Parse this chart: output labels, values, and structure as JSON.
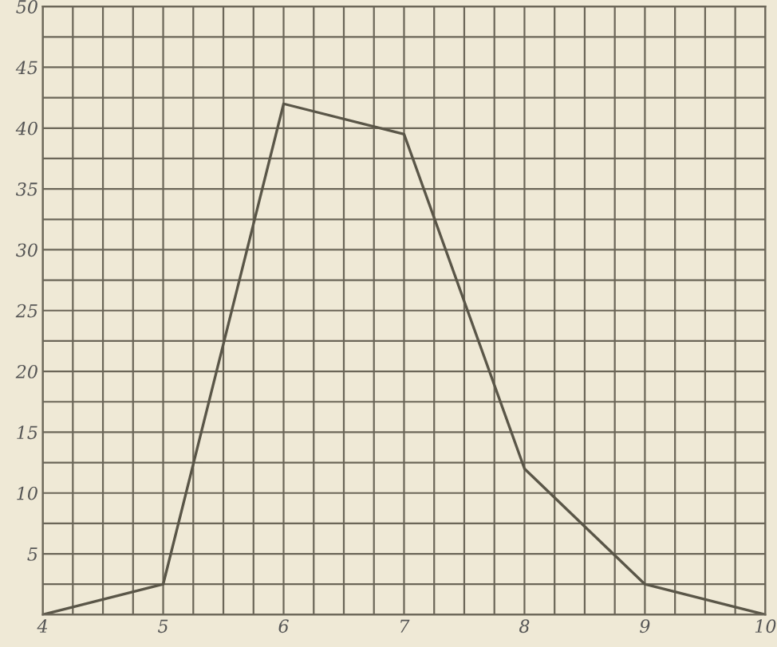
{
  "chart_data": {
    "type": "line",
    "x": [
      4,
      5,
      6,
      7,
      8,
      9,
      10
    ],
    "series": [
      {
        "color": "#5a5648",
        "values": [
          0,
          2.5,
          42,
          39.5,
          12,
          2.5,
          0
        ]
      }
    ],
    "xlim": [
      4,
      10
    ],
    "ylim": [
      0,
      50
    ],
    "xticks": [
      4,
      5,
      6,
      7,
      8,
      9,
      10
    ],
    "yticks": [
      {
        "value": 0,
        "label": null
      },
      5,
      10,
      15,
      20,
      25,
      30,
      35,
      40,
      45,
      50
    ],
    "grid": true,
    "marker": "none",
    "line_style": "solid"
  }
}
